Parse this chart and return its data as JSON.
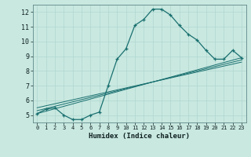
{
  "xlabel": "Humidex (Indice chaleur)",
  "bg_color": "#c8e8e0",
  "grid_color": "#b0d8d0",
  "line_color": "#1a7070",
  "xlim": [
    -0.5,
    23.5
  ],
  "ylim": [
    4.5,
    12.5
  ],
  "xticks": [
    0,
    1,
    2,
    3,
    4,
    5,
    6,
    7,
    8,
    9,
    10,
    11,
    12,
    13,
    14,
    15,
    16,
    17,
    18,
    19,
    20,
    21,
    22,
    23
  ],
  "yticks": [
    5,
    6,
    7,
    8,
    9,
    10,
    11,
    12
  ],
  "main_x": [
    0,
    1,
    2,
    3,
    4,
    5,
    6,
    7,
    8,
    9,
    10,
    11,
    12,
    13,
    14,
    15,
    16,
    17,
    18,
    19,
    20,
    21,
    22,
    23
  ],
  "main_y": [
    5.1,
    5.4,
    5.5,
    5.0,
    4.7,
    4.7,
    5.0,
    5.2,
    7.0,
    8.8,
    9.5,
    11.1,
    11.5,
    12.2,
    12.2,
    11.8,
    11.1,
    10.5,
    10.1,
    9.4,
    8.8,
    8.8,
    9.4,
    8.9
  ],
  "line2_x": [
    0,
    23
  ],
  "line2_y": [
    5.1,
    8.9
  ],
  "line3_x": [
    0,
    23
  ],
  "line3_y": [
    5.3,
    8.75
  ],
  "line4_x": [
    0,
    23
  ],
  "line4_y": [
    5.5,
    8.6
  ]
}
